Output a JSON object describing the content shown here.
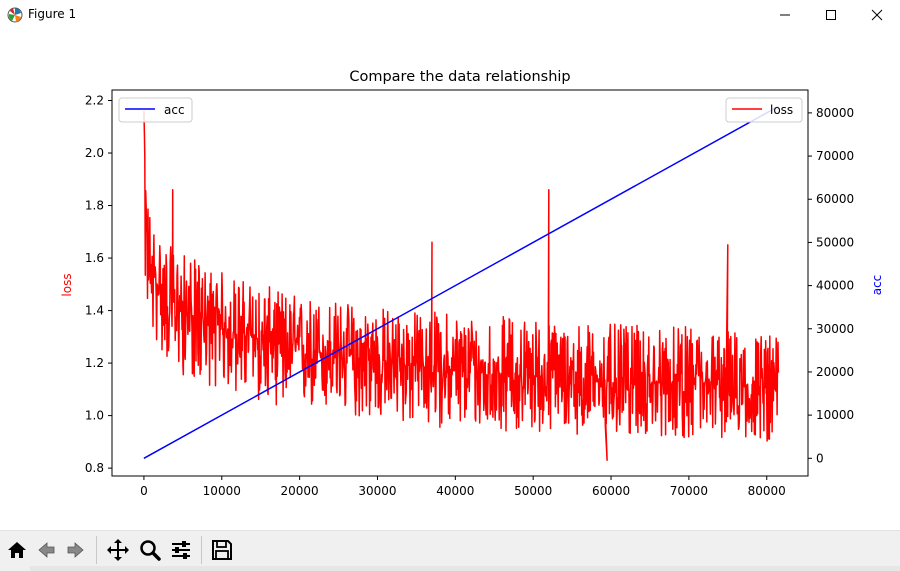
{
  "window": {
    "title": "Figure 1",
    "icons": {
      "app": "matplotlib-icon",
      "minimize": "minimize-icon",
      "maximize": "maximize-icon",
      "close": "close-icon"
    }
  },
  "toolbar": {
    "buttons": [
      {
        "name": "home-button",
        "icon": "home-icon"
      },
      {
        "name": "back-button",
        "icon": "back-arrow-icon"
      },
      {
        "name": "forward-button",
        "icon": "forward-arrow-icon"
      },
      {
        "name": "pan-button",
        "icon": "move-icon"
      },
      {
        "name": "zoom-button",
        "icon": "magnifier-icon"
      },
      {
        "name": "configure-subplots-button",
        "icon": "sliders-icon"
      },
      {
        "name": "save-button",
        "icon": "floppy-disk-icon"
      }
    ]
  },
  "chart_data": {
    "type": "line",
    "title": "Compare the data relationship",
    "xlabel": "",
    "ylabel_left": "loss",
    "ylabel_right": "acc",
    "xlim": [
      -4100,
      85300
    ],
    "ylim_left": [
      0.77,
      2.24
    ],
    "ylim_right": [
      -4100,
      85300
    ],
    "x_ticks": [
      0,
      10000,
      20000,
      30000,
      40000,
      50000,
      60000,
      70000,
      80000
    ],
    "y_left_ticks": [
      0.8,
      1.0,
      1.2,
      1.4,
      1.6,
      1.8,
      2.0,
      2.2
    ],
    "y_right_ticks": [
      0,
      10000,
      20000,
      30000,
      40000,
      50000,
      60000,
      70000,
      80000
    ],
    "grid": false,
    "series": [
      {
        "name": "loss",
        "axis": "left",
        "color": "#ff0000",
        "legend_position": "upper right",
        "x": [
          0,
          200,
          500,
          1000,
          2000,
          3000,
          5000,
          7500,
          10000,
          15000,
          20000,
          25000,
          30000,
          35000,
          40000,
          45000,
          50000,
          52000,
          55000,
          60000,
          65000,
          70000,
          75000,
          80000,
          81500
        ],
        "y": [
          2.16,
          1.85,
          1.6,
          1.55,
          1.48,
          1.44,
          1.4,
          1.36,
          1.33,
          1.29,
          1.25,
          1.23,
          1.21,
          1.19,
          1.17,
          1.16,
          1.15,
          1.15,
          1.14,
          1.13,
          1.12,
          1.12,
          1.11,
          1.1,
          1.1
        ],
        "band_low": [
          1.5,
          1.45,
          1.35,
          1.3,
          1.25,
          1.2,
          1.15,
          1.12,
          1.1,
          1.05,
          1.02,
          1.0,
          0.98,
          0.96,
          0.95,
          0.94,
          0.94,
          0.93,
          0.93,
          0.92,
          0.92,
          0.91,
          0.91,
          0.9,
          0.9
        ],
        "band_high": [
          2.16,
          1.87,
          1.85,
          1.75,
          1.7,
          1.65,
          1.62,
          1.58,
          1.55,
          1.5,
          1.46,
          1.44,
          1.42,
          1.4,
          1.4,
          1.38,
          1.38,
          1.36,
          1.36,
          1.35,
          1.34,
          1.34,
          1.33,
          1.32,
          1.3
        ],
        "spikes": [
          {
            "x": 52000,
            "y": 1.86
          },
          {
            "x": 75000,
            "y": 1.65
          },
          {
            "x": 3700,
            "y": 1.86
          },
          {
            "x": 37000,
            "y": 1.66
          },
          {
            "x": 59500,
            "y": 0.83
          }
        ]
      },
      {
        "name": "acc",
        "axis": "right",
        "color": "#0000ff",
        "legend_position": "upper left",
        "x": [
          0,
          81500
        ],
        "y": [
          0,
          81500
        ]
      }
    ]
  }
}
